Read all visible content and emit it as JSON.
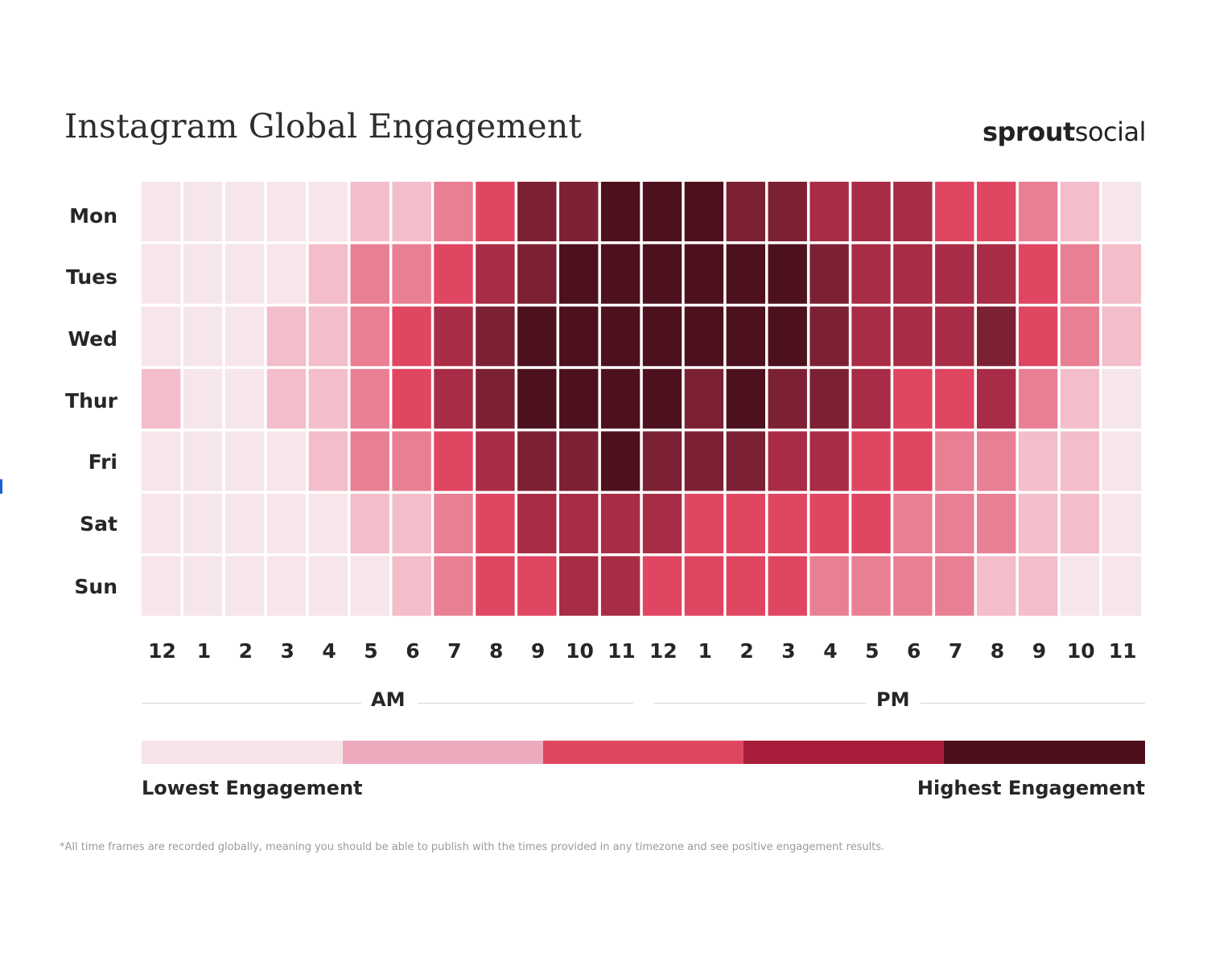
{
  "title": "Instagram Global Engagement",
  "brand": {
    "bold": "sprout",
    "regular": "social"
  },
  "chart_data": {
    "type": "heatmap",
    "title": "Instagram Global Engagement",
    "rows": [
      "Mon",
      "Tues",
      "Wed",
      "Thur",
      "Fri",
      "Sat",
      "Sun"
    ],
    "columns": [
      "12",
      "1",
      "2",
      "3",
      "4",
      "5",
      "6",
      "7",
      "8",
      "9",
      "10",
      "11",
      "12",
      "1",
      "2",
      "3",
      "4",
      "5",
      "6",
      "7",
      "8",
      "9",
      "10",
      "11"
    ],
    "column_groups": [
      {
        "label": "AM",
        "from": 0,
        "to": 11
      },
      {
        "label": "PM",
        "from": 12,
        "to": 23
      }
    ],
    "scale": {
      "min": 0,
      "max": 5,
      "unit": "engagement level (0 = lowest, 5 = highest)"
    },
    "values": [
      [
        0.5,
        0.5,
        0.5,
        0.5,
        0.5,
        1,
        1,
        1.5,
        2,
        3.5,
        3.5,
        4.5,
        4.5,
        4.5,
        3.5,
        3.5,
        3,
        3,
        3,
        2,
        2,
        1.5,
        1,
        0.5
      ],
      [
        0.5,
        0.5,
        0.5,
        0.5,
        1,
        1.5,
        1.5,
        2,
        3,
        3.5,
        4.5,
        4.5,
        4.5,
        4.5,
        4.5,
        4.5,
        3.5,
        3,
        3,
        3,
        3,
        2,
        1.5,
        1
      ],
      [
        0.5,
        0.5,
        0.5,
        1,
        1,
        1.5,
        2,
        3,
        3.5,
        4.5,
        4.5,
        4.5,
        4.5,
        4.5,
        4.5,
        4.5,
        3.5,
        3,
        3,
        3,
        3.5,
        2,
        1.5,
        1
      ],
      [
        1,
        0.5,
        0.5,
        1,
        1,
        1.5,
        2,
        3,
        3.5,
        4.5,
        4.5,
        4.5,
        4.5,
        3.5,
        4.5,
        3.5,
        3.5,
        3,
        2,
        2,
        3,
        1.5,
        1,
        0.5
      ],
      [
        0.5,
        0.5,
        0.5,
        0.5,
        1,
        1.5,
        1.5,
        2,
        3,
        3.5,
        3.5,
        4.5,
        3.5,
        3.5,
        3.5,
        3,
        3,
        2,
        2,
        1.5,
        1.5,
        1,
        1,
        0.5
      ],
      [
        0.5,
        0.5,
        0.5,
        0.5,
        0.5,
        1,
        1,
        1.5,
        2,
        3,
        3,
        3,
        3,
        2,
        2,
        2,
        2,
        2,
        1.5,
        1.5,
        1.5,
        1,
        1,
        0.5
      ],
      [
        0.5,
        0.5,
        0.5,
        0.5,
        0.5,
        0.5,
        1,
        1.5,
        2,
        2,
        3,
        3,
        2,
        2,
        2,
        2,
        1.5,
        1.5,
        1.5,
        1.5,
        1,
        1,
        0.5,
        0.5
      ]
    ],
    "legend": {
      "low_label": "Lowest Engagement",
      "high_label": "Highest Engagement",
      "colors": [
        "#f6e4e9",
        "#eeaabd",
        "#df4760",
        "#a81e3a",
        "#4e0f1c"
      ]
    },
    "palette": {
      "0.5": "#f6e5ea",
      "1": "#f3bdc9",
      "1.5": "#e97f93",
      "2": "#e04561",
      "3": "#a82c45",
      "3.5": "#7c2133",
      "4.5": "#4d111e"
    }
  },
  "footnote": "*All time frames are recorded globally, meaning you should be able to publish with the times provided in any timezone and see positive engagement results."
}
